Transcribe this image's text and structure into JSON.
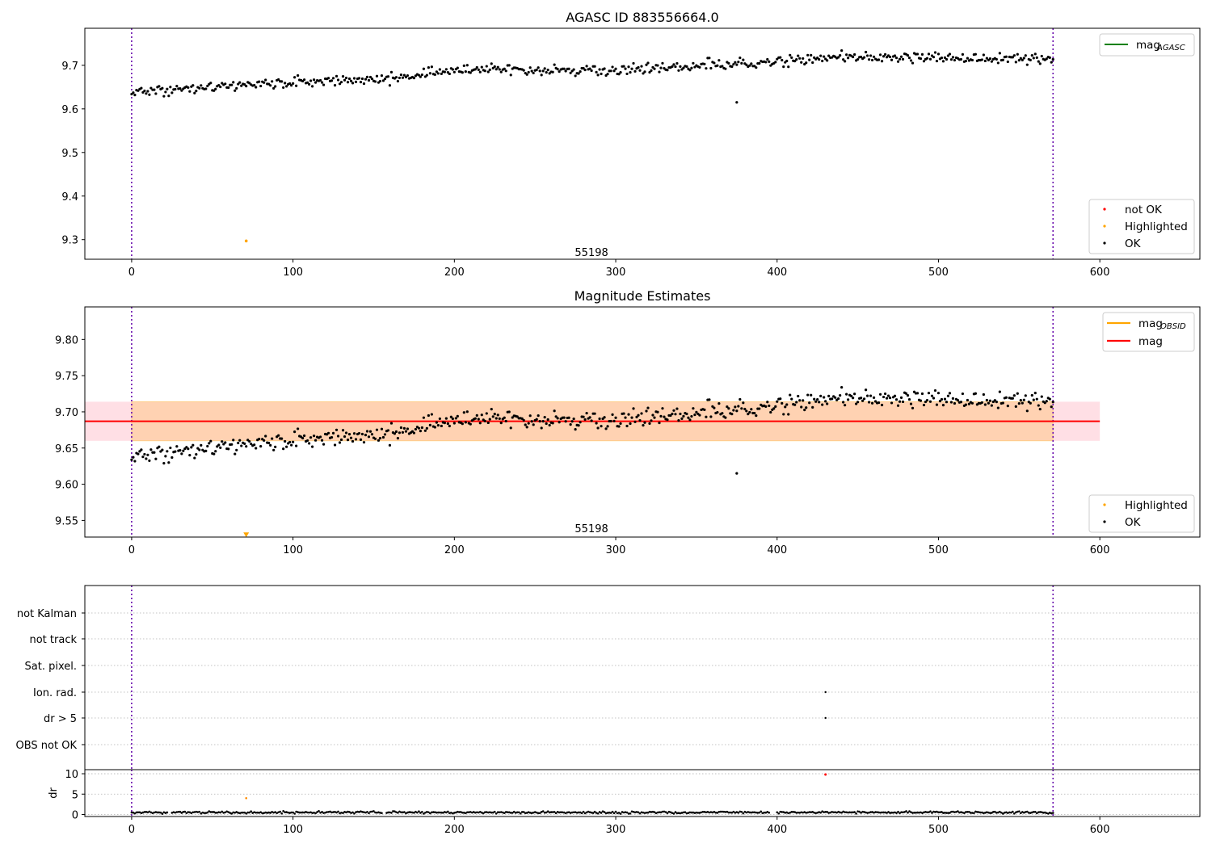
{
  "figure": {
    "panel1": {
      "title": "AGASC ID 883556664.0",
      "annotation": "55198"
    },
    "panel2": {
      "title": "Magnitude Estimates",
      "annotation": "55198"
    },
    "panel3": {}
  },
  "chart_data": [
    {
      "type": "scatter",
      "title": "AGASC ID 883556664.0",
      "xlim": [
        -29,
        662
      ],
      "ylim": [
        9.255,
        9.785
      ],
      "x_ticks": [
        0,
        100,
        200,
        300,
        400,
        500,
        600
      ],
      "y_ticks": [
        9.3,
        9.4,
        9.5,
        9.6,
        9.7
      ],
      "y_tick_labels": [
        "9.3",
        "9.4",
        "9.5",
        "9.6",
        "9.7"
      ],
      "vertical_lines": [
        0,
        571
      ],
      "annotation": {
        "text": "55198",
        "x": 285,
        "y": 9.27
      },
      "legend_lines": [
        {
          "label": "mag",
          "sub": "AGASC",
          "color": "#008000",
          "placement": "upper right"
        }
      ],
      "legend_points": [
        {
          "label": "not OK",
          "color": "#ff0000"
        },
        {
          "label": "Highlighted",
          "color": "#ffa500"
        },
        {
          "label": "OK",
          "color": "#000000"
        }
      ],
      "series": [
        {
          "name": "OK",
          "color": "#000000",
          "x_start": 0,
          "x_end": 571,
          "y_trend": [
            [
              0,
              9.638
            ],
            [
              100,
              9.661
            ],
            [
              160,
              9.67
            ],
            [
              200,
              9.69
            ],
            [
              300,
              9.688
            ],
            [
              400,
              9.708
            ],
            [
              440,
              9.72
            ],
            [
              571,
              9.715
            ]
          ],
          "scatter": 0.012
        },
        {
          "name": "OK outlier",
          "color": "#000000",
          "points": [
            [
              375,
              9.615
            ]
          ]
        },
        {
          "name": "Highlighted",
          "color": "#ffa500",
          "points": [
            [
              71,
              9.297
            ]
          ]
        }
      ]
    },
    {
      "type": "scatter",
      "title": "Magnitude Estimates",
      "xlim": [
        -29,
        662
      ],
      "ylim": [
        9.527,
        9.845
      ],
      "x_ticks": [
        0,
        100,
        200,
        300,
        400,
        500,
        600
      ],
      "y_ticks": [
        9.55,
        9.6,
        9.65,
        9.7,
        9.75,
        9.8
      ],
      "y_tick_labels": [
        "9.55",
        "9.60",
        "9.65",
        "9.70",
        "9.75",
        "9.80"
      ],
      "vertical_lines": [
        0,
        571
      ],
      "annotation": {
        "text": "55198",
        "x": 285,
        "y": 9.538
      },
      "mag": 9.687,
      "mag_band": [
        9.66,
        9.714
      ],
      "obsid_band": {
        "x": [
          0,
          571
        ],
        "y": [
          9.66,
          9.714
        ]
      },
      "pink_band": {
        "x": [
          -29,
          600
        ],
        "y": [
          9.66,
          9.714
        ]
      },
      "legend_lines": [
        {
          "label": "mag",
          "sub": "OBSID",
          "color": "#ffa500"
        },
        {
          "label": "mag",
          "sub": "",
          "color": "#ff0000"
        }
      ],
      "legend_points": [
        {
          "label": "Highlighted",
          "color": "#ffa500"
        },
        {
          "label": "OK",
          "color": "#000000"
        }
      ],
      "series": [
        {
          "name": "OK",
          "color": "#000000"
        },
        {
          "name": "Highlighted",
          "color": "#ffa500",
          "points": [
            [
              71,
              9.53
            ]
          ],
          "marker": "triangle-down"
        }
      ]
    },
    {
      "type": "scatter",
      "title": "",
      "xlim": [
        -29,
        662
      ],
      "categories": [
        "not Kalman",
        "not track",
        "Sat. pixel.",
        "Ion. rad.",
        "dr > 5",
        "OBS not OK"
      ],
      "vertical_lines": [
        0,
        571
      ],
      "flag_points": [
        {
          "category": "Ion. rad.",
          "x": 430
        },
        {
          "category": "dr > 5",
          "x": 430
        }
      ]
    },
    {
      "type": "scatter",
      "title": "",
      "ylabel": "dr",
      "xlim": [
        -29,
        662
      ],
      "ylim": [
        -0.5,
        11
      ],
      "x_ticks": [
        0,
        100,
        200,
        300,
        400,
        500,
        600
      ],
      "y_ticks": [
        0,
        5,
        10
      ],
      "vertical_lines": [
        0,
        571
      ],
      "series": [
        {
          "name": "dr",
          "color": "#000000",
          "x_start": 0,
          "x_end": 571,
          "typical": 0.5
        },
        {
          "name": "Highlighted",
          "color": "#ff8c00",
          "points": [
            [
              71,
              4
            ]
          ]
        },
        {
          "name": "not OK",
          "color": "#ff0000",
          "points": [
            [
              430,
              9.8
            ]
          ]
        }
      ]
    }
  ]
}
